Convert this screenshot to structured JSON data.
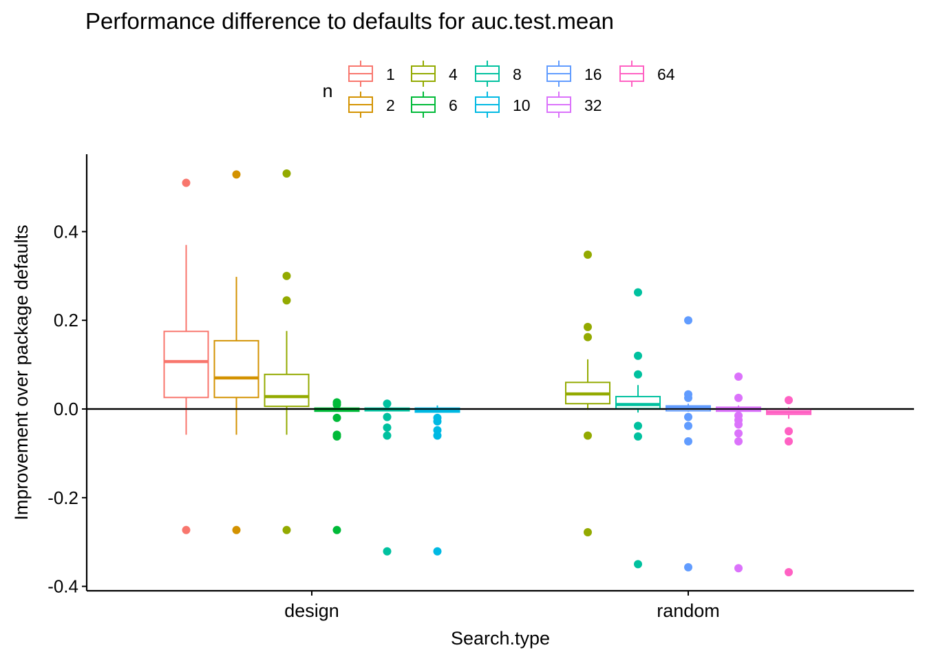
{
  "chart_data": {
    "type": "boxplot",
    "title": "Performance difference to defaults for auc.test.mean",
    "xlabel": "Search.type",
    "ylabel": "Improvement over package defaults",
    "ylim": [
      -0.41,
      0.57
    ],
    "yticks": [
      -0.4,
      -0.2,
      0.0,
      0.2,
      0.4
    ],
    "ytick_labels": [
      "-0.4",
      "-0.2",
      "0.0",
      "0.2",
      "0.4"
    ],
    "categories": [
      "design",
      "random"
    ],
    "reference_line": 0.0,
    "grid": false,
    "legend": {
      "title": "n",
      "placement": "top",
      "rows": [
        [
          "1",
          "4",
          "8",
          "16",
          "64"
        ],
        [
          "2",
          "6",
          "10",
          "32"
        ]
      ]
    },
    "series": [
      {
        "name": "1",
        "color": "#F8766D",
        "groups": [
          {
            "category": "design",
            "lower_whisker": -0.058,
            "q1": 0.026,
            "median": 0.107,
            "q3": 0.175,
            "upper_whisker": 0.37,
            "outliers": [
              0.51,
              -0.273
            ]
          }
        ]
      },
      {
        "name": "2",
        "color": "#D39200",
        "groups": [
          {
            "category": "design",
            "lower_whisker": -0.058,
            "q1": 0.026,
            "median": 0.07,
            "q3": 0.154,
            "upper_whisker": 0.298,
            "outliers": [
              0.529,
              -0.273
            ]
          }
        ]
      },
      {
        "name": "4",
        "color": "#93AA00",
        "groups": [
          {
            "category": "design",
            "lower_whisker": -0.058,
            "q1": 0.006,
            "median": 0.028,
            "q3": 0.078,
            "upper_whisker": 0.176,
            "outliers": [
              0.531,
              0.3,
              0.245,
              -0.273
            ]
          },
          {
            "category": "random",
            "lower_whisker": -0.002,
            "q1": 0.012,
            "median": 0.034,
            "q3": 0.06,
            "upper_whisker": 0.112,
            "outliers": [
              0.348,
              0.185,
              0.162,
              -0.06,
              -0.278
            ]
          }
        ]
      },
      {
        "name": "6",
        "color": "#00BA38",
        "groups": [
          {
            "category": "design",
            "lower_whisker": -0.005,
            "q1": -0.005,
            "median": -0.002,
            "q3": 0.002,
            "upper_whisker": 0.002,
            "outliers": [
              0.015,
              0.01,
              -0.02,
              -0.058,
              -0.062,
              -0.273
            ]
          }
        ]
      },
      {
        "name": "8",
        "color": "#00C19F",
        "groups": [
          {
            "category": "design",
            "lower_whisker": -0.004,
            "q1": -0.004,
            "median": -0.002,
            "q3": 0.002,
            "upper_whisker": 0.002,
            "outliers": [
              0.012,
              -0.018,
              -0.042,
              -0.06,
              -0.321
            ]
          },
          {
            "category": "random",
            "lower_whisker": -0.008,
            "q1": 0.001,
            "median": 0.01,
            "q3": 0.028,
            "upper_whisker": 0.054,
            "outliers": [
              0.263,
              0.12,
              0.078,
              -0.038,
              -0.062,
              -0.35
            ]
          }
        ]
      },
      {
        "name": "10",
        "color": "#00B9E3",
        "groups": [
          {
            "category": "design",
            "lower_whisker": -0.007,
            "q1": -0.007,
            "median": -0.004,
            "q3": 0.002,
            "upper_whisker": 0.008,
            "outliers": [
              -0.02,
              -0.028,
              -0.048,
              -0.06,
              -0.321
            ]
          }
        ]
      },
      {
        "name": "16",
        "color": "#619CFF",
        "groups": [
          {
            "category": "random",
            "lower_whisker": -0.006,
            "q1": -0.004,
            "median": 0.002,
            "q3": 0.007,
            "upper_whisker": 0.012,
            "outliers": [
              0.2,
              0.033,
              0.025,
              -0.018,
              -0.038,
              -0.073,
              -0.357
            ]
          }
        ]
      },
      {
        "name": "32",
        "color": "#DB72FB",
        "groups": [
          {
            "category": "random",
            "lower_whisker": -0.005,
            "q1": -0.005,
            "median": -0.001,
            "q3": 0.004,
            "upper_whisker": 0.008,
            "outliers": [
              0.073,
              0.025,
              -0.015,
              -0.025,
              -0.035,
              -0.055,
              -0.073,
              -0.359
            ]
          }
        ]
      },
      {
        "name": "64",
        "color": "#FF61C3",
        "groups": [
          {
            "category": "random",
            "lower_whisker": -0.022,
            "q1": -0.012,
            "median": -0.007,
            "q3": -0.001,
            "upper_whisker": 0.004,
            "outliers": [
              0.02,
              -0.05,
              -0.073,
              -0.368
            ]
          }
        ]
      }
    ]
  }
}
